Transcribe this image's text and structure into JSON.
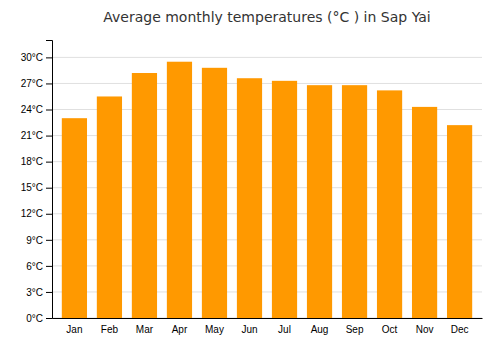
{
  "chart_data": {
    "type": "bar",
    "title": "Average monthly temperatures (°C ) in Sap Yai",
    "categories": [
      "Jan",
      "Feb",
      "Mar",
      "Apr",
      "May",
      "Jun",
      "Jul",
      "Aug",
      "Sep",
      "Oct",
      "Nov",
      "Dec"
    ],
    "values": [
      23.0,
      25.5,
      28.2,
      29.5,
      28.8,
      27.6,
      27.3,
      26.8,
      26.8,
      26.2,
      24.3,
      22.2
    ],
    "color": "#FF9900",
    "ylim": [
      0,
      32
    ],
    "yticks": [
      {
        "value": 0,
        "label": "0°C"
      },
      {
        "value": 3,
        "label": "3°C"
      },
      {
        "value": 6,
        "label": "6°C"
      },
      {
        "value": 9,
        "label": "9°C"
      },
      {
        "value": 12,
        "label": "12°C"
      },
      {
        "value": 15,
        "label": "15°C"
      },
      {
        "value": 18,
        "label": "18°C"
      },
      {
        "value": 21,
        "label": "21°C"
      },
      {
        "value": 24,
        "label": "24°C"
      },
      {
        "value": 27,
        "label": "27°C"
      },
      {
        "value": 30,
        "label": "30°C"
      }
    ],
    "grid": true
  }
}
